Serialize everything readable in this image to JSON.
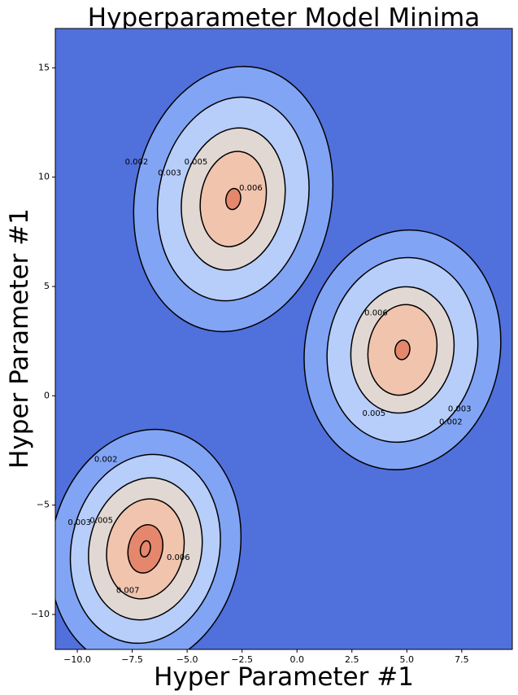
{
  "chart_data": {
    "type": "contour",
    "title": "Hyperparameter Model Minima",
    "xlabel": "Hyper Parameter #1",
    "ylabel": "Hyper Parameter #1",
    "xlim": [
      -11.0,
      9.8
    ],
    "ylim": [
      -11.6,
      16.8
    ],
    "xticks": [
      -10.0,
      -7.5,
      -5.0,
      -2.5,
      0.0,
      2.5,
      5.0,
      7.5
    ],
    "xtick_labels": [
      "−10.0",
      "−7.5",
      "−5.0",
      "−2.5",
      "0.0",
      "2.5",
      "5.0",
      "7.5"
    ],
    "yticks": [
      -10,
      -5,
      0,
      5,
      10,
      15
    ],
    "ytick_labels": [
      "−10",
      "−5",
      "0",
      "5",
      "10",
      "15"
    ],
    "grid": false,
    "colormap": "coolwarm",
    "colors": {
      "background": "#5070dc",
      "band1": "#82a4f4",
      "band2": "#b7cdfa",
      "band3": "#e2d8d3",
      "band4": "#f1c4ae",
      "band5": "#e4876c",
      "line": "#000000"
    },
    "peaks": [
      {
        "center": [
          -2.9,
          9.0
        ],
        "peak_value": 0.0064,
        "levels": [
          0.002,
          0.003,
          0.005,
          0.006
        ]
      },
      {
        "center": [
          4.8,
          2.1
        ],
        "peak_value": 0.0068,
        "levels": [
          0.002,
          0.003,
          0.005,
          0.006,
          0.0067
        ]
      },
      {
        "center": [
          -6.9,
          -7.0
        ],
        "peak_value": 0.0073,
        "levels": [
          0.002,
          0.003,
          0.005,
          0.006,
          0.007,
          0.0072
        ]
      }
    ],
    "contour_labels": [
      {
        "text": "0.002",
        "x": -7.3,
        "y": 10.7
      },
      {
        "text": "0.003",
        "x": -5.8,
        "y": 10.2
      },
      {
        "text": "0.005",
        "x": -4.6,
        "y": 10.7
      },
      {
        "text": "0.006",
        "x": -2.1,
        "y": 9.5
      },
      {
        "text": "0.006",
        "x": 3.6,
        "y": 3.8
      },
      {
        "text": "0.005",
        "x": 3.5,
        "y": -0.8
      },
      {
        "text": "0.003",
        "x": 7.4,
        "y": -0.6
      },
      {
        "text": "0.002",
        "x": 7.0,
        "y": -1.2
      },
      {
        "text": "0.002",
        "x": -8.7,
        "y": -2.9
      },
      {
        "text": "0.003",
        "x": -9.9,
        "y": -5.8
      },
      {
        "text": "0.005",
        "x": -8.9,
        "y": -5.7
      },
      {
        "text": "0.006",
        "x": -5.4,
        "y": -7.4
      },
      {
        "text": "0.007",
        "x": -7.7,
        "y": -8.9
      }
    ]
  }
}
